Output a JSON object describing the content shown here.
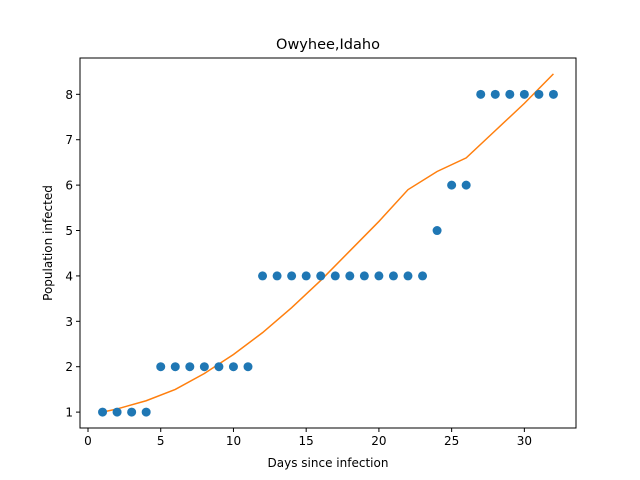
{
  "chart_data": {
    "type": "scatter",
    "title": "Owyhee,Idaho",
    "xlabel": "Days since infection",
    "ylabel": "Population infected",
    "xlim": [
      -0.55,
      33.55
    ],
    "ylim": [
      0.65,
      8.8
    ],
    "xticks": [
      0,
      5,
      10,
      15,
      20,
      25,
      30
    ],
    "yticks": [
      1,
      2,
      3,
      4,
      5,
      6,
      7,
      8
    ],
    "grid": false,
    "series": [
      {
        "kind": "scatter",
        "color": "#1f77b4",
        "x": [
          1,
          2,
          3,
          4,
          5,
          6,
          7,
          8,
          9,
          10,
          11,
          12,
          13,
          14,
          15,
          16,
          17,
          18,
          19,
          20,
          21,
          22,
          23,
          24,
          25,
          26,
          27,
          28,
          29,
          30,
          31,
          32
        ],
        "y": [
          1,
          1,
          1,
          1,
          2,
          2,
          2,
          2,
          2,
          2,
          2,
          4,
          4,
          4,
          4,
          4,
          4,
          4,
          4,
          4,
          4,
          4,
          4,
          5,
          6,
          6,
          8,
          8,
          8,
          8,
          8,
          8
        ]
      },
      {
        "kind": "line",
        "color": "#ff7f0e",
        "x": [
          1,
          2,
          4,
          6,
          8,
          10,
          12,
          14,
          16,
          18,
          20,
          22,
          24,
          26,
          28,
          30,
          32
        ],
        "y": [
          1.0,
          1.07,
          1.25,
          1.5,
          1.85,
          2.27,
          2.75,
          3.3,
          3.9,
          4.55,
          5.2,
          5.9,
          6.3,
          6.6,
          7.2,
          7.8,
          8.45
        ]
      }
    ]
  }
}
